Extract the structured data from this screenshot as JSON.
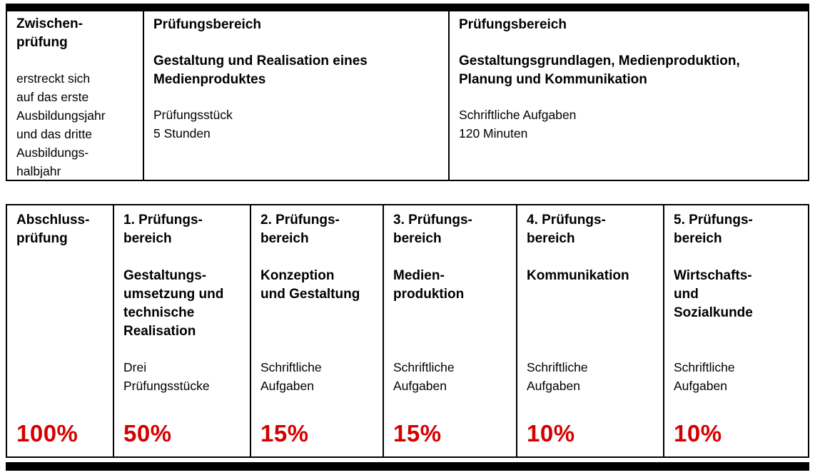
{
  "colors": {
    "percent_red": "#d40000",
    "border_black": "#000000",
    "background": "#ffffff"
  },
  "top_table": {
    "intro": {
      "title": "Zwischen-\nprüfung",
      "body": "erstreckt sich\nauf das erste\nAusbildungsjahr\nund das dritte\nAusbildungs-\nhalbjahr"
    },
    "area1": {
      "heading": "Prüfungsbereich",
      "subject": "Gestaltung und Realisation eines\nMedienproduktes",
      "details": "Prüfungsstück\n5 Stunden"
    },
    "area2": {
      "heading": "Prüfungsbereich",
      "subject": "Gestaltungsgrundlagen, Medienproduktion,\nPlanung und Kommunikation",
      "details": "Schriftliche Aufgaben\n120 Minuten"
    }
  },
  "bottom_table": {
    "intro": {
      "title": "Abschluss-\nprüfung",
      "percent": "100%"
    },
    "areas": [
      {
        "title": "1. Prüfungs-\nbereich",
        "subject": "Gestaltungs-\numsetzung und\ntechnische\nRealisation",
        "details": "Drei\nPrüfungsstücke",
        "percent": "50%"
      },
      {
        "title": "2. Prüfungs-\nbereich",
        "subject": "Konzeption\nund Gestaltung",
        "details": "Schriftliche\nAufgaben",
        "percent": "15%"
      },
      {
        "title": "3. Prüfungs-\nbereich",
        "subject": "Medien-\nproduktion",
        "details": "Schriftliche\nAufgaben",
        "percent": "15%"
      },
      {
        "title": "4. Prüfungs-\nbereich",
        "subject": "Kommunikation",
        "details": "Schriftliche\nAufgaben",
        "percent": "10%"
      },
      {
        "title": "5. Prüfungs-\nbereich",
        "subject": "Wirtschafts-\nund\nSozialkunde",
        "details": "Schriftliche\nAufgaben",
        "percent": "10%"
      }
    ]
  }
}
